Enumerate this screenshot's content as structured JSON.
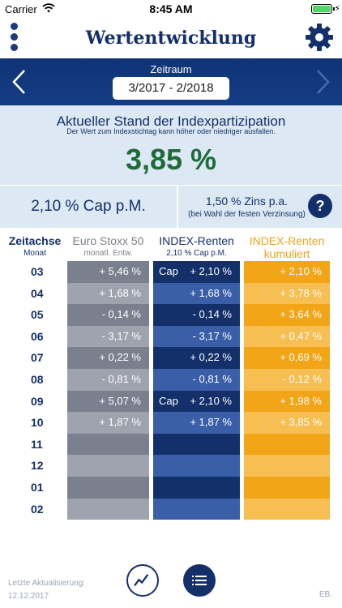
{
  "status_bar": {
    "carrier": "Carrier",
    "time": "8:45 AM"
  },
  "header": {
    "title": "Wertentwicklung",
    "menu_icon": "more-vertical-icon",
    "settings_icon": "gear-icon"
  },
  "period": {
    "label": "Zeitraum",
    "value": "3/2017 - 2/2018"
  },
  "stand": {
    "title": "Aktueller Stand der Indexpartizipation",
    "subtitle": "Der Wert zum Indexstichtag kann höher oder niedriger ausfallen.",
    "value": "3,85 %"
  },
  "cap": {
    "label": "2,10 % Cap p.M.",
    "zins": "1,50 % Zins p.a.",
    "zins_note": "(bei Wahl der festen Verzinsung)",
    "help_label": "?"
  },
  "columns": {
    "zeit": {
      "title": "Zeitachse",
      "sub": "Monat"
    },
    "euro": {
      "title": "Euro Stoxx 50",
      "sub": "monatl. Entw."
    },
    "index": {
      "title": "INDEX-Renten",
      "sub": "2,10 % Cap p.M."
    },
    "kum": {
      "title": "INDEX-Renten",
      "sub": "kumuliert"
    }
  },
  "colors": {
    "euro_dark": "#7a808e",
    "euro_light": "#9ea3ad",
    "index_dark": "#14306a",
    "index_light": "#3a5fa8",
    "kum_dark": "#f2a516",
    "kum_light": "#f7be52"
  },
  "cap_tag": "Cap",
  "rows": [
    {
      "month": "03",
      "euro": "+ 5,46 %",
      "index": "+ 2,10 %",
      "cap": true,
      "kum": "+ 2,10 %"
    },
    {
      "month": "04",
      "euro": "+ 1,68 %",
      "index": "+ 1,68 %",
      "cap": false,
      "kum": "+ 3,78 %"
    },
    {
      "month": "05",
      "euro": "- 0,14 %",
      "index": "- 0,14 %",
      "cap": false,
      "kum": "+ 3,64 %"
    },
    {
      "month": "06",
      "euro": "- 3,17 %",
      "index": "- 3,17 %",
      "cap": false,
      "kum": "+ 0,47 %"
    },
    {
      "month": "07",
      "euro": "+ 0,22 %",
      "index": "+ 0,22 %",
      "cap": false,
      "kum": "+ 0,69 %"
    },
    {
      "month": "08",
      "euro": "- 0,81 %",
      "index": "- 0,81 %",
      "cap": false,
      "kum": "- 0,12 %"
    },
    {
      "month": "09",
      "euro": "+ 5,07 %",
      "index": "+ 2,10 %",
      "cap": true,
      "kum": "+ 1,98 %"
    },
    {
      "month": "10",
      "euro": "+ 1,87 %",
      "index": "+ 1,87 %",
      "cap": false,
      "kum": "+ 3,85 %"
    },
    {
      "month": "11",
      "euro": "",
      "index": "",
      "cap": false,
      "kum": ""
    },
    {
      "month": "12",
      "euro": "",
      "index": "",
      "cap": false,
      "kum": ""
    },
    {
      "month": "01",
      "euro": "",
      "index": "",
      "cap": false,
      "kum": ""
    },
    {
      "month": "02",
      "euro": "",
      "index": "",
      "cap": false,
      "kum": ""
    }
  ],
  "footer": {
    "update_label": "Letzte Aktualisierung:",
    "update_date": "12.12.2017",
    "code": "EB.",
    "chart_icon": "line-chart-icon",
    "list_icon": "list-icon"
  }
}
